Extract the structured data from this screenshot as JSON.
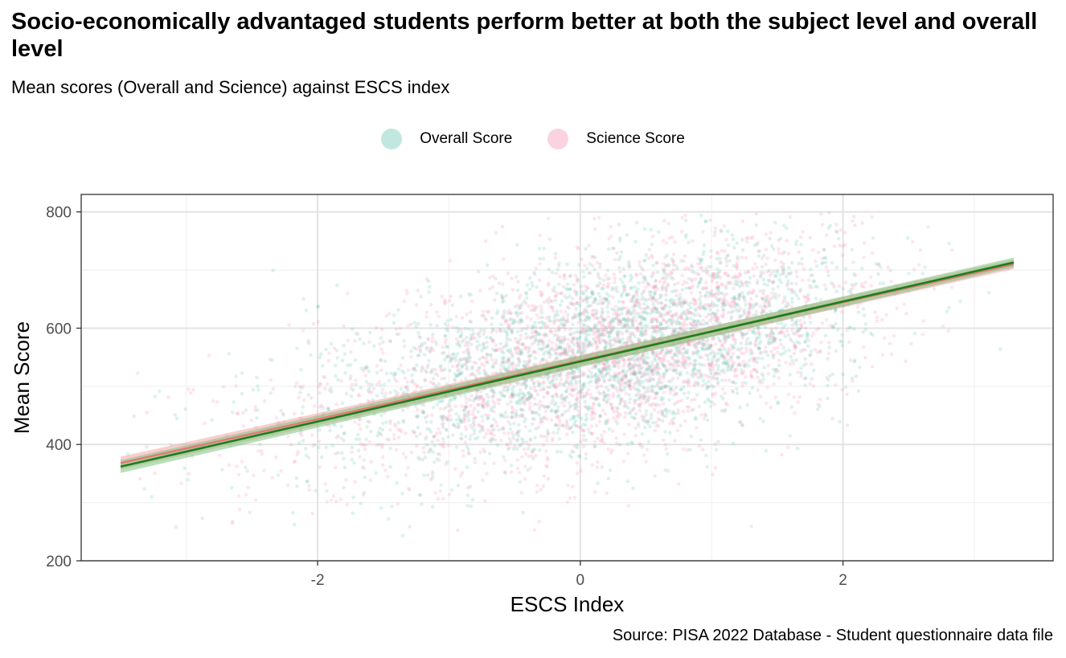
{
  "title": "Socio-economically advantaged students perform better at both the subject level and overall level",
  "subtitle": "Mean scores (Overall and Science) against ESCS index",
  "caption": "Source: PISA 2022 Database - Student questionnaire data file",
  "colors": {
    "overall": "#66c2b3",
    "science": "#f48fb1",
    "overall_line": "#e07a7a",
    "science_line": "#1a7f1a",
    "grid_major": "#e3e3e3",
    "grid_minor": "#f2f2f2",
    "panel_border": "#333333"
  },
  "chart_data": {
    "type": "scatter",
    "title": "Socio-economically advantaged students perform better at both the subject level and overall level",
    "subtitle": "Mean scores (Overall and Science) against ESCS index",
    "xlabel": "ESCS Index",
    "ylabel": "Mean Score",
    "xlim": [
      -3.8,
      3.6
    ],
    "ylim": [
      200,
      830
    ],
    "x_ticks": [
      -2,
      0,
      2
    ],
    "x_tick_labels": [
      "-2",
      "0",
      "2"
    ],
    "y_ticks": [
      200,
      400,
      600,
      800
    ],
    "y_tick_labels": [
      "200",
      "400",
      "600",
      "800"
    ],
    "grid": true,
    "legend_position": "top",
    "series": [
      {
        "name": "Overall Score",
        "point_cloud": {
          "x_mean": 0.45,
          "x_sd": 0.85,
          "intercept": 549,
          "slope": 47,
          "resid_sd": 80
        },
        "fit": {
          "x": [
            -3.5,
            3.3
          ],
          "y": [
            368,
            710
          ]
        }
      },
      {
        "name": "Science Score",
        "point_cloud": {
          "x_mean": 0.45,
          "x_sd": 0.85,
          "intercept": 549,
          "slope": 51,
          "resid_sd": 85
        },
        "fit": {
          "x": [
            -3.5,
            3.3
          ],
          "y": [
            362,
            713
          ]
        }
      }
    ]
  }
}
